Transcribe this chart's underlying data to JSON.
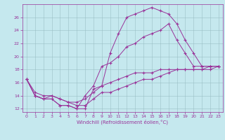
{
  "title": "",
  "xlabel": "Windchill (Refroidissement éolien,°C)",
  "bg_color": "#c5e8ee",
  "line_color": "#993399",
  "grid_color": "#9bbfc5",
  "xlim": [
    -0.5,
    23.5
  ],
  "ylim": [
    11.5,
    28.0
  ],
  "yticks": [
    12,
    14,
    16,
    18,
    20,
    22,
    24,
    26
  ],
  "xticks": [
    0,
    1,
    2,
    3,
    4,
    5,
    6,
    7,
    8,
    9,
    10,
    11,
    12,
    13,
    14,
    15,
    16,
    17,
    18,
    19,
    20,
    21,
    22,
    23
  ],
  "line1_x": [
    0,
    1,
    2,
    3,
    4,
    5,
    6,
    7,
    8,
    9,
    10,
    11,
    12,
    13,
    14,
    15,
    16,
    17,
    18,
    19,
    20,
    21,
    22,
    23
  ],
  "line1_y": [
    16.5,
    14.0,
    13.5,
    13.5,
    12.5,
    12.5,
    12.0,
    12.0,
    15.0,
    15.5,
    20.5,
    23.5,
    26.0,
    26.5,
    27.0,
    27.5,
    27.0,
    26.5,
    25.0,
    22.5,
    20.5,
    18.5,
    18.5,
    18.5
  ],
  "line2_x": [
    0,
    1,
    2,
    3,
    4,
    5,
    6,
    7,
    8,
    9,
    10,
    11,
    12,
    13,
    14,
    15,
    16,
    17,
    18,
    19,
    20,
    21,
    22,
    23
  ],
  "line2_y": [
    16.5,
    14.0,
    13.5,
    13.5,
    12.5,
    12.5,
    12.0,
    14.0,
    15.5,
    18.5,
    19.0,
    20.0,
    21.5,
    22.0,
    23.0,
    23.5,
    24.0,
    25.0,
    22.5,
    20.5,
    18.5,
    18.5,
    18.5,
    18.5
  ],
  "line3_x": [
    0,
    1,
    2,
    3,
    4,
    5,
    6,
    7,
    8,
    9,
    10,
    11,
    12,
    13,
    14,
    15,
    16,
    17,
    18,
    19,
    20,
    21,
    22,
    23
  ],
  "line3_y": [
    16.5,
    14.0,
    13.5,
    14.0,
    13.5,
    13.0,
    13.0,
    13.5,
    14.5,
    15.5,
    16.0,
    16.5,
    17.0,
    17.5,
    17.5,
    17.5,
    18.0,
    18.0,
    18.0,
    18.0,
    18.0,
    18.0,
    18.0,
    18.5
  ],
  "line4_x": [
    0,
    1,
    2,
    3,
    4,
    5,
    6,
    7,
    8,
    9,
    10,
    11,
    12,
    13,
    14,
    15,
    16,
    17,
    18,
    19,
    20,
    21,
    22,
    23
  ],
  "line4_y": [
    16.5,
    14.5,
    14.0,
    14.0,
    13.5,
    13.0,
    12.5,
    12.5,
    13.5,
    14.5,
    14.5,
    15.0,
    15.5,
    16.0,
    16.5,
    16.5,
    17.0,
    17.5,
    18.0,
    18.0,
    18.0,
    18.0,
    18.5,
    18.5
  ],
  "tick_fontsize": 4.5,
  "xlabel_fontsize": 5.0,
  "linewidth": 0.7,
  "markersize": 3.5
}
